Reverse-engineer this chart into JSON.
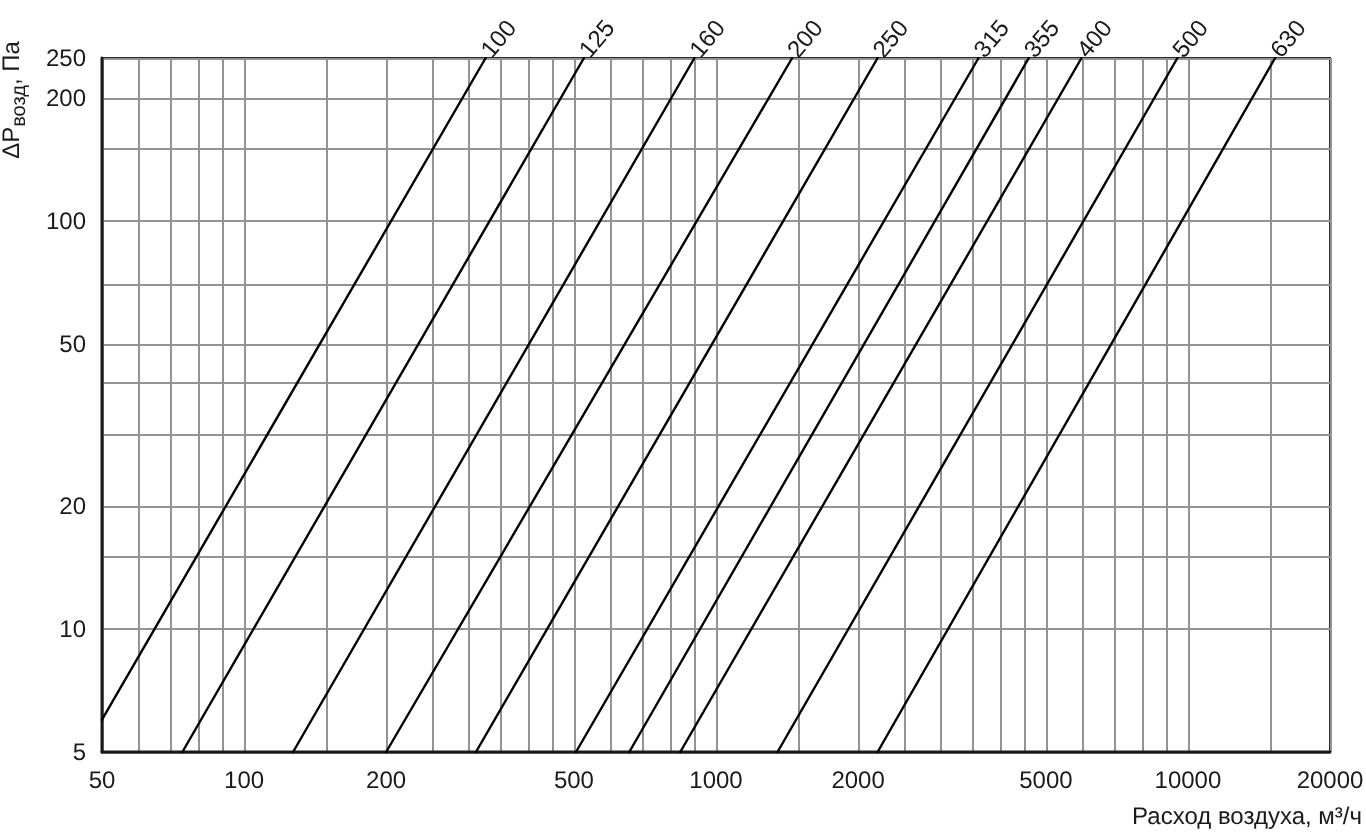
{
  "chart_data": {
    "type": "line",
    "ylabel": "ΔP$_{возд}$, Па",
    "xlabel": "Расход воздуха, м³/ч",
    "log": "xy",
    "grid": true,
    "line_style": "solid",
    "xlim": [
      50,
      20000
    ],
    "xticks": [
      50,
      {
        "value": 60,
        "label": null
      },
      {
        "value": 70,
        "label": null
      },
      {
        "value": 80,
        "label": null
      },
      {
        "value": 90,
        "label": null
      },
      100,
      {
        "value": 150,
        "label": null
      },
      200,
      {
        "value": 250,
        "label": null
      },
      {
        "value": 300,
        "label": null
      },
      {
        "value": 350,
        "label": null
      },
      {
        "value": 400,
        "label": null
      },
      {
        "value": 450,
        "label": null
      },
      500,
      {
        "value": 600,
        "label": null
      },
      {
        "value": 700,
        "label": null
      },
      {
        "value": 800,
        "label": null
      },
      {
        "value": 900,
        "label": null
      },
      1000,
      {
        "value": 1500,
        "label": null
      },
      2000,
      {
        "value": 2500,
        "label": null
      },
      {
        "value": 3000,
        "label": null
      },
      {
        "value": 3500,
        "label": null
      },
      {
        "value": 4000,
        "label": null
      },
      {
        "value": 4500,
        "label": null
      },
      5000,
      {
        "value": 6000,
        "label": null
      },
      {
        "value": 7000,
        "label": null
      },
      {
        "value": 8000,
        "label": null
      },
      {
        "value": 9000,
        "label": null
      },
      10000,
      {
        "value": 15000,
        "label": null
      },
      20000
    ],
    "ylim": [
      5,
      250
    ],
    "yticks": [
      5,
      10,
      {
        "value": 15,
        "label": null
      },
      20,
      {
        "value": 30,
        "label": null
      },
      {
        "value": 40,
        "label": null
      },
      50,
      {
        "value": 70,
        "label": null
      },
      100,
      {
        "value": 150,
        "label": null
      },
      200,
      250
    ],
    "series": [
      {
        "name": "100",
        "color": "#000000",
        "x": [
          50,
          325
        ],
        "values": [
          6,
          250
        ]
      },
      {
        "name": "125",
        "color": "#000000",
        "x": [
          74,
          525
        ],
        "values": [
          5,
          250
        ]
      },
      {
        "name": "160",
        "color": "#000000",
        "x": [
          127,
          900
        ],
        "values": [
          5,
          250
        ]
      },
      {
        "name": "200",
        "color": "#000000",
        "x": [
          200,
          1450
        ],
        "values": [
          5,
          250
        ]
      },
      {
        "name": "250",
        "color": "#000000",
        "x": [
          310,
          2200
        ],
        "values": [
          5,
          250
        ]
      },
      {
        "name": "315",
        "color": "#000000",
        "x": [
          505,
          3600
        ],
        "values": [
          5,
          250
        ]
      },
      {
        "name": "355",
        "color": "#000000",
        "x": [
          655,
          4600
        ],
        "values": [
          5,
          250
        ]
      },
      {
        "name": "400",
        "color": "#000000",
        "x": [
          840,
          5950
        ],
        "values": [
          5,
          250
        ]
      },
      {
        "name": "500",
        "color": "#000000",
        "x": [
          1350,
          9500
        ],
        "values": [
          5,
          250
        ]
      },
      {
        "name": "630",
        "color": "#000000",
        "x": [
          2200,
          15300
        ],
        "values": [
          5,
          250
        ]
      }
    ]
  }
}
